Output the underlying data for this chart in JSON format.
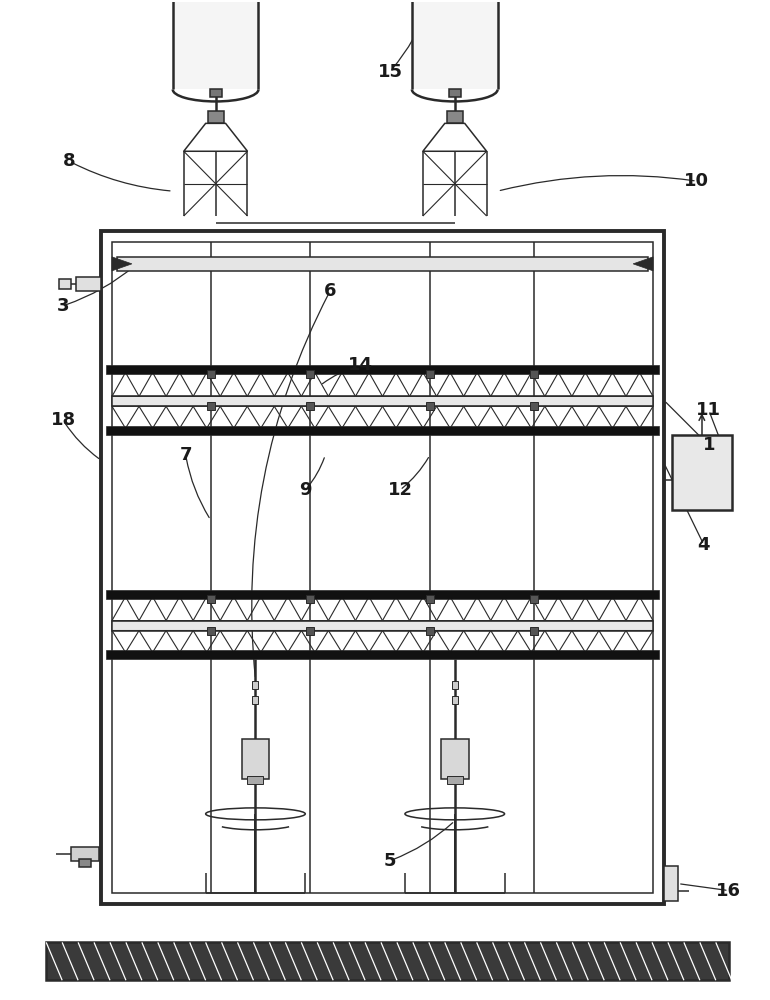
{
  "bg_color": "#ffffff",
  "lc": "#2a2a2a",
  "lc_gray": "#6a6a6a",
  "fc_light": "#f0f0f0",
  "fc_gray": "#d0d0d0",
  "fc_dark": "#1a1a1a",
  "fc_black": "#111111"
}
